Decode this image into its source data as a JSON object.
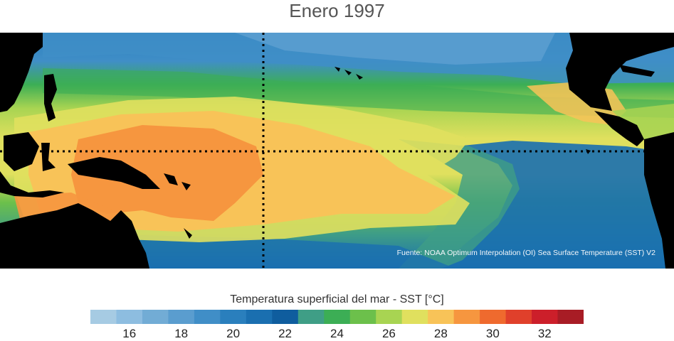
{
  "title": "Enero 1997",
  "source": "Fuente: NOAA Optimum Interpolation (OI) Sea Surface Temperature (SST) V2",
  "colorbar": {
    "title": "Temperatura superficial del mar - SST  [°C]",
    "min": 15,
    "max": 33,
    "step": 1,
    "colors": [
      "#a6cbe3",
      "#8dbde0",
      "#72acd5",
      "#5a9dcf",
      "#408ec7",
      "#2a7fbd",
      "#1a6fb0",
      "#0f5d9e",
      "#3f9e86",
      "#3cae55",
      "#6cc04b",
      "#a8d452",
      "#e0e05e",
      "#f8c358",
      "#f6963f",
      "#ef6a2e",
      "#e0402b",
      "#cc1f2a",
      "#a81c25"
    ],
    "ticks": [
      16,
      18,
      20,
      22,
      24,
      26,
      28,
      30,
      32
    ],
    "tick_labels": [
      "16",
      "18",
      "20",
      "22",
      "24",
      "26",
      "28",
      "30",
      "32"
    ]
  },
  "map": {
    "land_color": "#000000",
    "grid_line_color": "#000000"
  }
}
